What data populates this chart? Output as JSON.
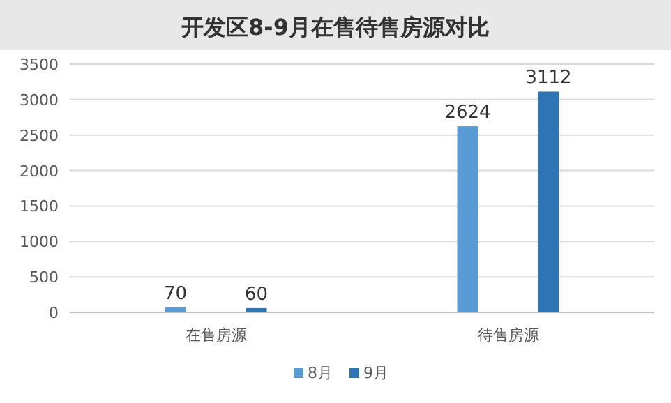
{
  "chart_data": {
    "type": "bar",
    "title": "开发区8-9月在售待售房源对比",
    "categories": [
      "在售房源",
      "待售房源"
    ],
    "series": [
      {
        "name": "8月",
        "color": "#5b9bd5",
        "values": [
          70,
          2624
        ]
      },
      {
        "name": "9月",
        "color": "#2e75b6",
        "values": [
          60,
          3112
        ]
      }
    ],
    "ylim": [
      0,
      3500
    ],
    "yticks": [
      0,
      500,
      1000,
      1500,
      2000,
      2500,
      3000,
      3500
    ],
    "grid": "y",
    "legend": "bottom",
    "data_labels": true
  }
}
